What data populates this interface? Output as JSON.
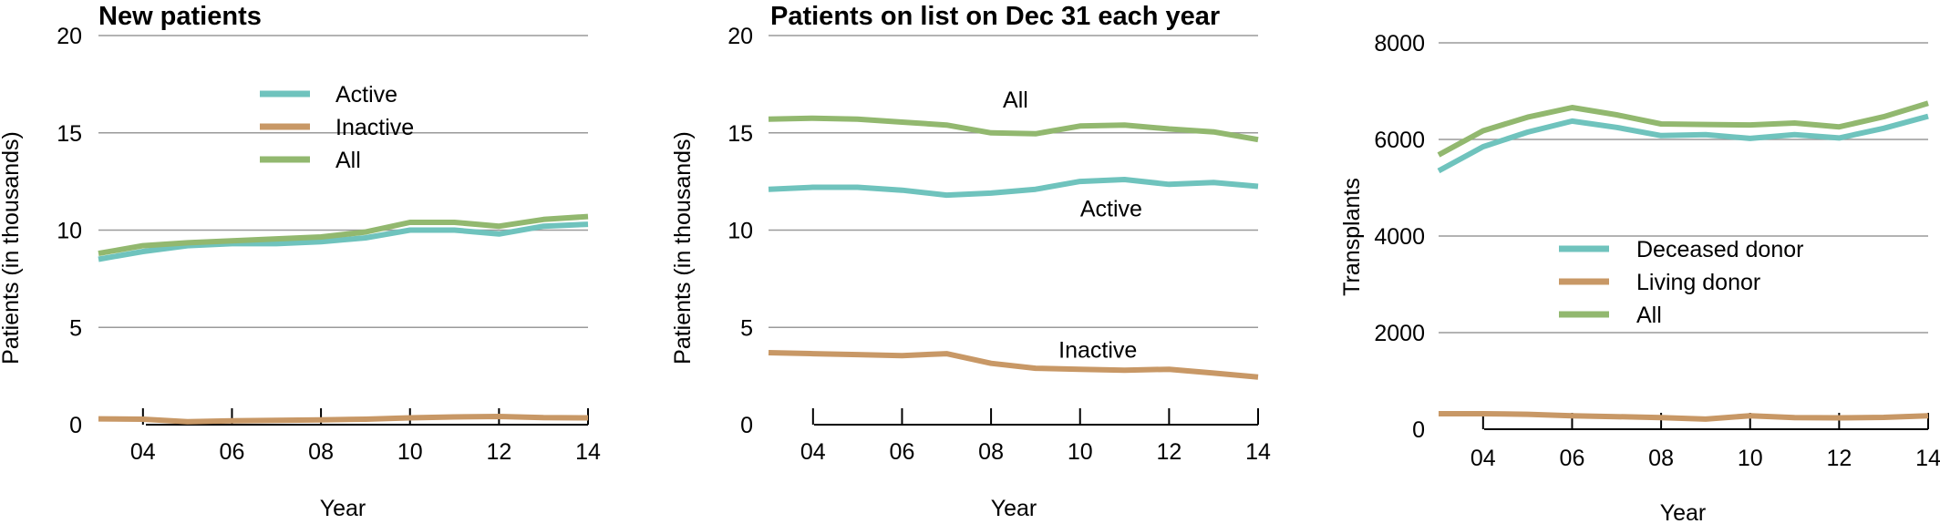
{
  "colors": {
    "active": "#6fc3bd",
    "inactive": "#c89866",
    "all": "#92b86f"
  },
  "chart_data": [
    {
      "type": "line",
      "title": "New patients",
      "xlabel": "Year",
      "ylabel": "Patients (in thousands)",
      "xlim": [
        3,
        14
      ],
      "ylim": [
        0,
        20
      ],
      "yticks": [
        0,
        5,
        10,
        15,
        20
      ],
      "xticks": [
        4,
        6,
        8,
        10,
        12,
        14
      ],
      "xtick_labels": [
        "04",
        "06",
        "08",
        "10",
        "12",
        "14"
      ],
      "x": [
        3,
        4,
        5,
        6,
        7,
        8,
        9,
        10,
        11,
        12,
        13,
        14
      ],
      "grid": true,
      "legend_position": "top-center",
      "series": [
        {
          "name": "Active",
          "color_key": "active",
          "values": [
            8.5,
            8.9,
            9.2,
            9.3,
            9.3,
            9.4,
            9.6,
            10.0,
            10.0,
            9.8,
            10.2,
            10.3
          ]
        },
        {
          "name": "Inactive",
          "color_key": "inactive",
          "values": [
            0.3,
            0.28,
            0.15,
            0.2,
            0.22,
            0.25,
            0.28,
            0.35,
            0.4,
            0.42,
            0.36,
            0.35
          ]
        },
        {
          "name": "All",
          "color_key": "all",
          "values": [
            8.8,
            9.2,
            9.35,
            9.45,
            9.55,
            9.65,
            9.9,
            10.4,
            10.4,
            10.2,
            10.55,
            10.7
          ]
        }
      ]
    },
    {
      "type": "line",
      "title": "Patients on list on Dec 31 each year",
      "xlabel": "Year",
      "ylabel": "Patients (in thousands)",
      "xlim": [
        3,
        14
      ],
      "ylim": [
        0,
        20
      ],
      "yticks": [
        0,
        5,
        10,
        15,
        20
      ],
      "xticks": [
        4,
        6,
        8,
        10,
        12,
        14
      ],
      "xtick_labels": [
        "04",
        "06",
        "08",
        "10",
        "12",
        "14"
      ],
      "x": [
        3,
        4,
        5,
        6,
        7,
        8,
        9,
        10,
        11,
        12,
        13,
        14
      ],
      "grid": true,
      "annotations": [
        {
          "text": "All",
          "x": 8.55,
          "y": 16.3
        },
        {
          "text": "Active",
          "x": 10.7,
          "y": 10.7
        },
        {
          "text": "Inactive",
          "x": 10.4,
          "y": 3.45
        }
      ],
      "series": [
        {
          "name": "Active",
          "color_key": "active",
          "values": [
            12.1,
            12.2,
            12.2,
            12.05,
            11.8,
            11.9,
            12.1,
            12.5,
            12.6,
            12.35,
            12.45,
            12.25
          ]
        },
        {
          "name": "Inactive",
          "color_key": "inactive",
          "values": [
            3.7,
            3.65,
            3.6,
            3.55,
            3.65,
            3.15,
            2.9,
            2.85,
            2.8,
            2.85,
            2.65,
            2.45
          ]
        },
        {
          "name": "All",
          "color_key": "all",
          "values": [
            15.7,
            15.75,
            15.7,
            15.55,
            15.4,
            15.0,
            14.95,
            15.35,
            15.4,
            15.2,
            15.05,
            14.65
          ]
        }
      ]
    },
    {
      "type": "line",
      "title": "",
      "xlabel": "Year",
      "ylabel": "Transplants",
      "xlim": [
        3,
        14
      ],
      "ylim": [
        0,
        8000
      ],
      "yticks": [
        0,
        2000,
        4000,
        6000,
        8000
      ],
      "xticks": [
        4,
        6,
        8,
        10,
        12,
        14
      ],
      "xtick_labels": [
        "04",
        "06",
        "08",
        "10",
        "12",
        "14"
      ],
      "x": [
        3,
        4,
        5,
        6,
        7,
        8,
        9,
        10,
        11,
        12,
        13,
        14
      ],
      "grid": true,
      "legend_position": "center",
      "series": [
        {
          "name": "Deceased donor",
          "color_key": "active",
          "values": [
            5350,
            5850,
            6150,
            6380,
            6250,
            6080,
            6100,
            6020,
            6100,
            6030,
            6230,
            6480
          ]
        },
        {
          "name": "Living donor",
          "color_key": "inactive",
          "values": [
            320,
            320,
            310,
            280,
            260,
            240,
            210,
            280,
            240,
            235,
            245,
            280
          ]
        },
        {
          "name": "All",
          "color_key": "all",
          "values": [
            5680,
            6180,
            6460,
            6660,
            6510,
            6320,
            6310,
            6300,
            6340,
            6260,
            6470,
            6750
          ]
        }
      ]
    }
  ]
}
